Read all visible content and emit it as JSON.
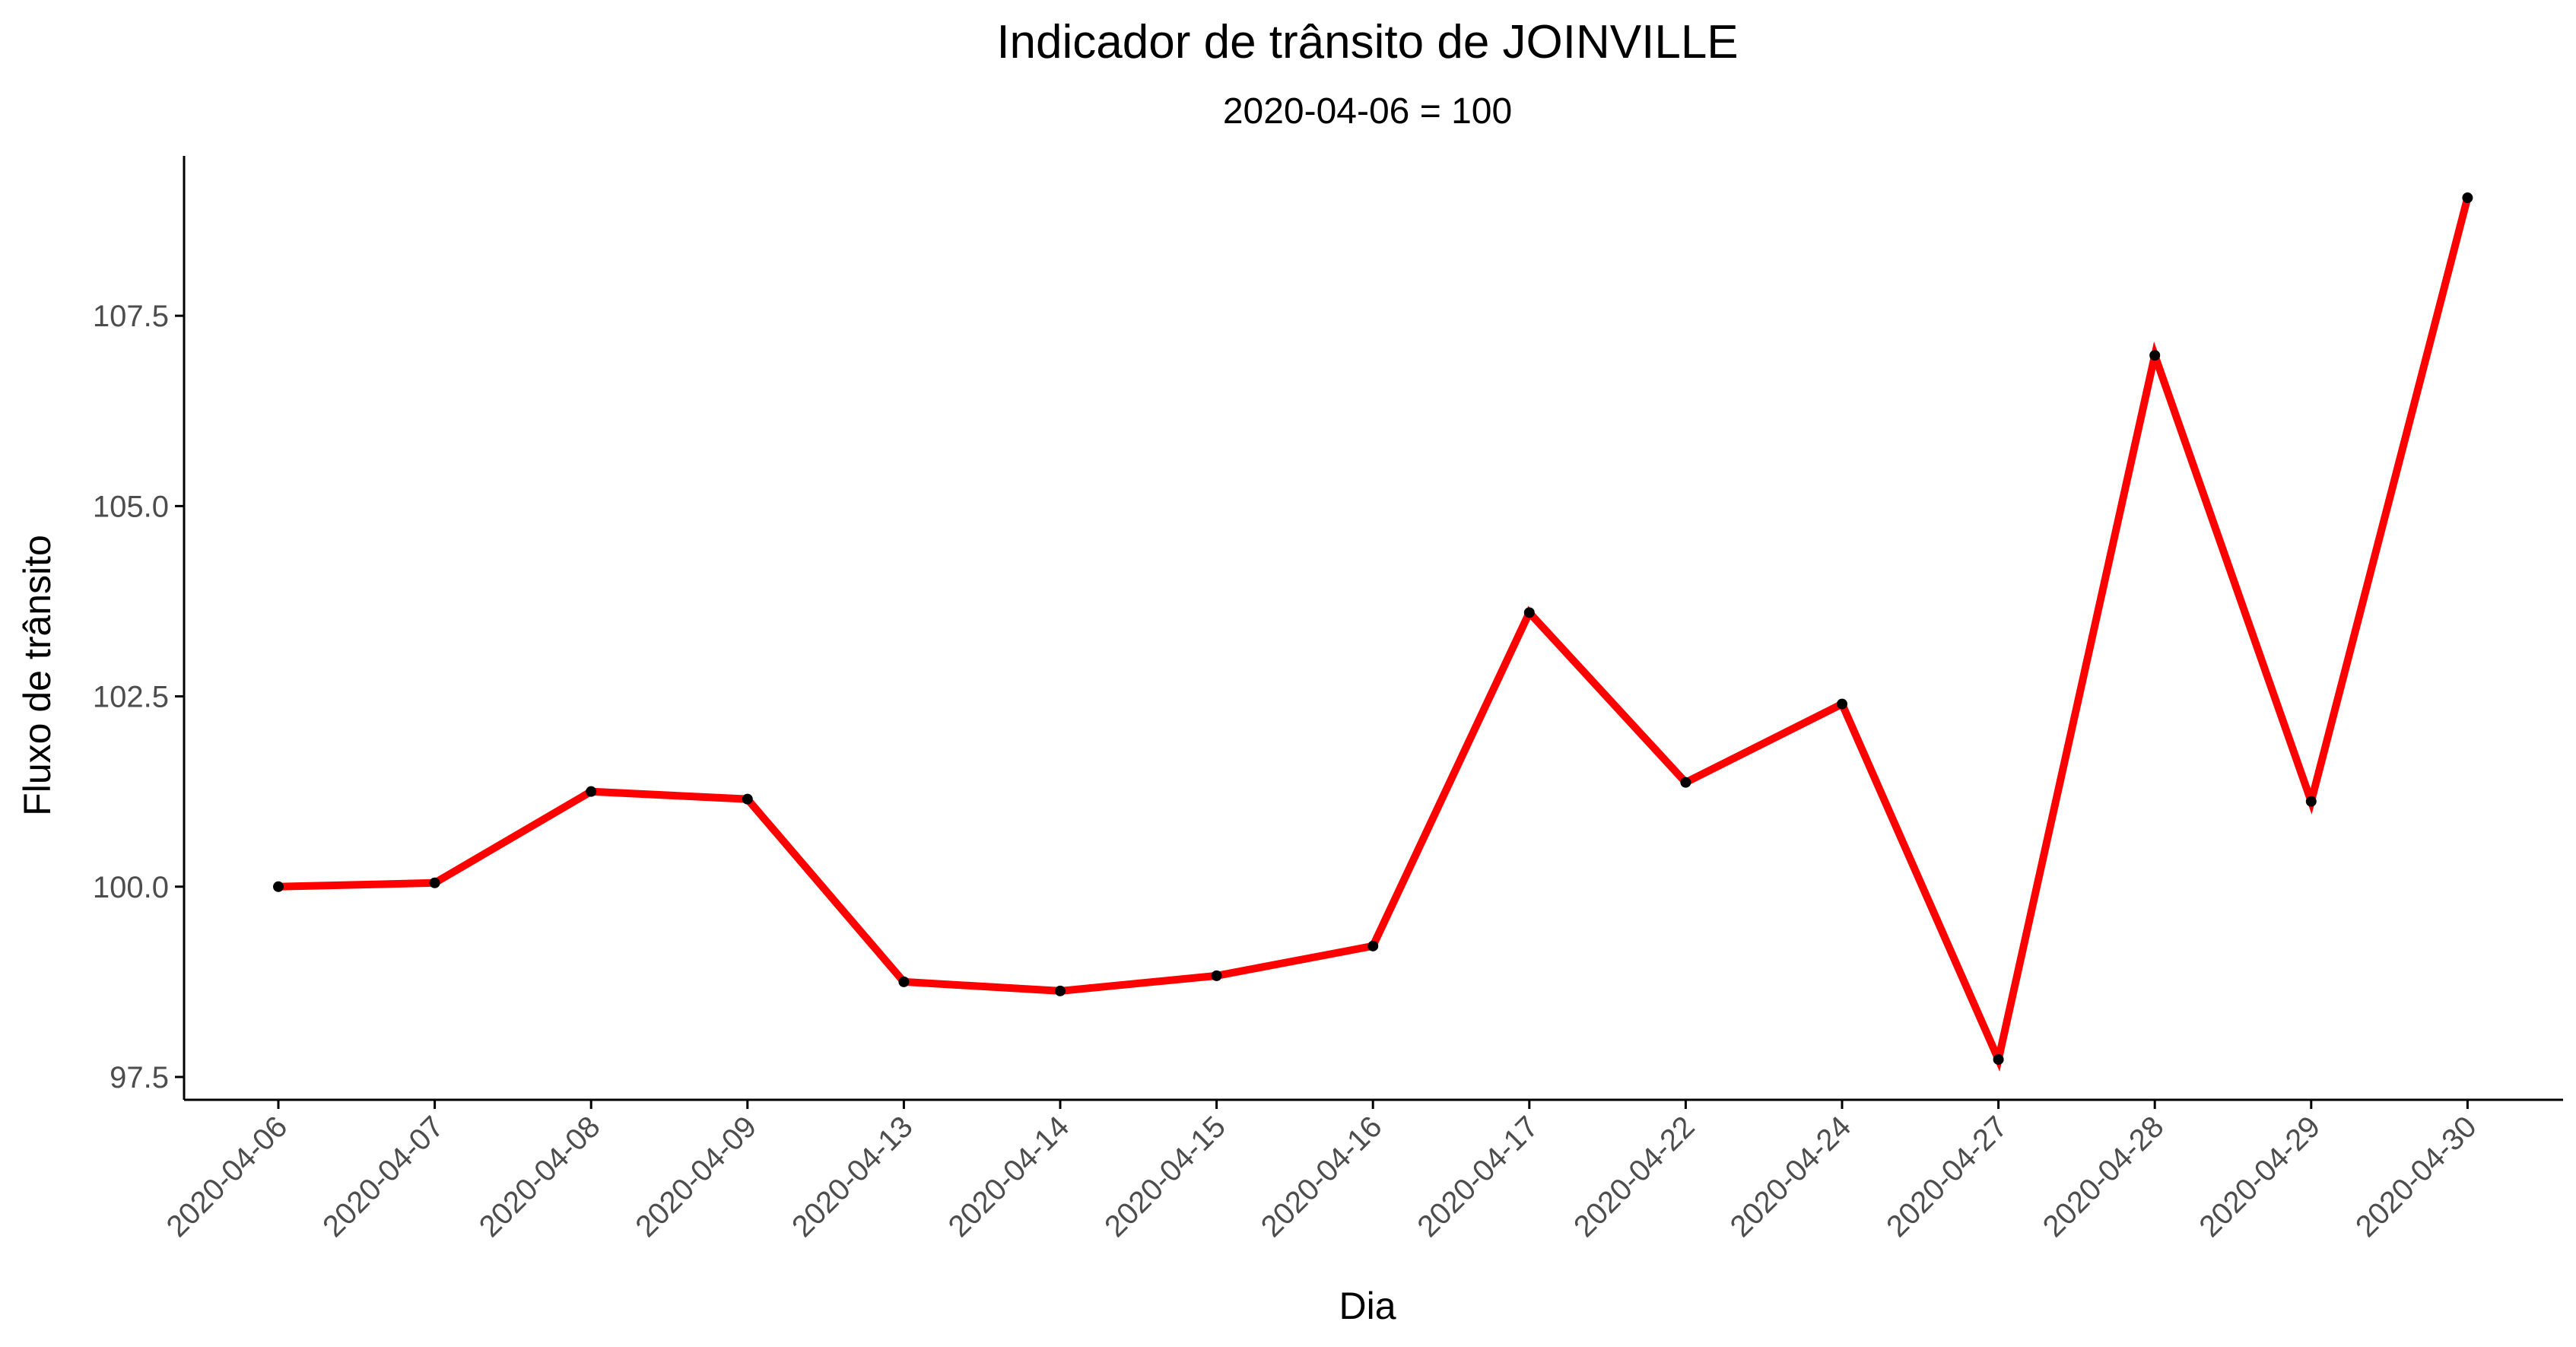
{
  "chart_data": {
    "type": "line",
    "title": "Indicador de trânsito de JOINVILLE",
    "subtitle": "2020-04-06 = 100",
    "xlabel": "Dia",
    "ylabel": "Fluxo de trânsito",
    "categories": [
      "2020-04-06",
      "2020-04-07",
      "2020-04-08",
      "2020-04-09",
      "2020-04-13",
      "2020-04-14",
      "2020-04-15",
      "2020-04-16",
      "2020-04-17",
      "2020-04-22",
      "2020-04-24",
      "2020-04-27",
      "2020-04-28",
      "2020-04-29",
      "2020-04-30"
    ],
    "series": [
      {
        "values": [
          100.0,
          100.05,
          101.25,
          101.15,
          98.75,
          98.63,
          98.83,
          99.22,
          103.6,
          101.37,
          102.4,
          97.73,
          106.98,
          101.12,
          109.05
        ]
      }
    ],
    "yticks": [
      "97.5",
      "100.0",
      "102.5",
      "105.0",
      "107.5"
    ],
    "ylim": [
      97.2,
      109.6
    ],
    "grid": false,
    "legend": "none",
    "colors": {
      "line": "#ff0000",
      "points": "#000000",
      "axis": "#000000",
      "tick_text": "#4d4d4d"
    }
  }
}
